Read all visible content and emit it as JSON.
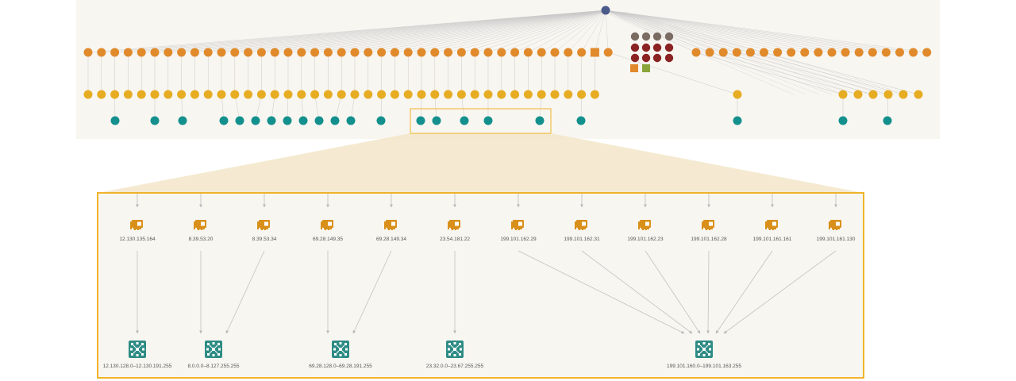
{
  "colors": {
    "overview_bg": "#f8f6f1",
    "zoom_bg": "#f8f6f1",
    "zoom_border": "#f0b32a",
    "callout_fill": "#f3e6c9",
    "root_node": "#4a5a8a",
    "orange_node": "#e08a2c",
    "yellow_node": "#e6ac22",
    "teal_node": "#13908e",
    "dark_red_node": "#8b2323",
    "gray_node": "#7a6b63",
    "green_square": "#8aa63a",
    "nic_icon": "#d9901a",
    "network_icon": "#2e8c85",
    "edge": "#c9c9c9"
  },
  "overview": {
    "root": {
      "icon": "root-node"
    },
    "row1_orange_count": 64,
    "row1_square_index": 38,
    "cluster": {
      "gray": 4,
      "dark_red": 8,
      "squares": [
        "orange",
        "green"
      ]
    },
    "row2_yellow_count": 44,
    "row3_teal_count": 21
  },
  "zoom": {
    "interfaces": [
      {
        "icon": "network-card-icon",
        "label": "12.130.135.164"
      },
      {
        "icon": "network-card-icon",
        "label": "8.39.53.20"
      },
      {
        "icon": "network-card-icon",
        "label": "8.39.53.34"
      },
      {
        "icon": "network-card-icon",
        "label": "69.28.149.35"
      },
      {
        "icon": "network-card-icon",
        "label": "69.28.149.34"
      },
      {
        "icon": "network-card-icon",
        "label": "23.54.181.22"
      },
      {
        "icon": "network-card-icon",
        "label": "199.101.162.29"
      },
      {
        "icon": "network-card-icon",
        "label": "199.101.162.31"
      },
      {
        "icon": "network-card-icon",
        "label": "199.101.162.23"
      },
      {
        "icon": "network-card-icon",
        "label": "199.101.162.28"
      },
      {
        "icon": "network-card-icon",
        "label": "199.101.161.161"
      },
      {
        "icon": "network-card-icon",
        "label": "199.101.161.130"
      }
    ],
    "networks": [
      {
        "icon": "network-range-icon",
        "label": "12.130.128.0–12.130.191.255"
      },
      {
        "icon": "network-range-icon",
        "label": "8.0.0.0–8.127.255.255"
      },
      {
        "icon": "network-range-icon",
        "label": "69.28.128.0–69.28.191.255"
      },
      {
        "icon": "network-range-icon",
        "label": "23.32.0.0–23.67.255.255"
      },
      {
        "icon": "network-range-icon",
        "label": "199.101.160.0–199.101.163.255"
      }
    ],
    "links": [
      [
        0,
        0
      ],
      [
        1,
        1
      ],
      [
        2,
        1
      ],
      [
        3,
        2
      ],
      [
        4,
        2
      ],
      [
        5,
        3
      ],
      [
        6,
        4
      ],
      [
        7,
        4
      ],
      [
        8,
        4
      ],
      [
        9,
        4
      ],
      [
        10,
        4
      ],
      [
        11,
        4
      ]
    ]
  }
}
